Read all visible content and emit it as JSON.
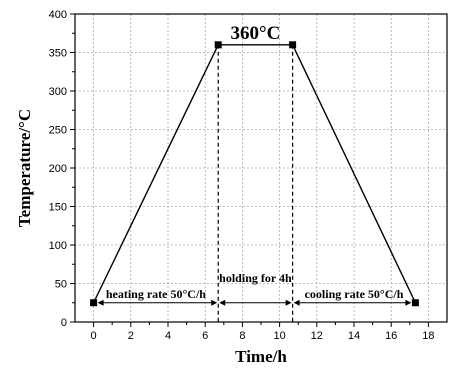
{
  "chart_data": {
    "type": "line",
    "xlabel": "Time/h",
    "ylabel": "Temperature/°C",
    "xlim": [
      -1,
      19
    ],
    "ylim": [
      0,
      400
    ],
    "x_ticks": [
      0,
      2,
      4,
      6,
      8,
      10,
      12,
      14,
      16,
      18
    ],
    "y_ticks": [
      0,
      50,
      100,
      150,
      200,
      250,
      300,
      350,
      400
    ],
    "grid": true,
    "series": [
      {
        "x": [
          0,
          6.7,
          10.7,
          17.3
        ],
        "y": [
          25,
          360,
          360,
          25
        ],
        "marker": "square",
        "color": "#000000"
      }
    ],
    "annotations": {
      "peak_label": "360°C",
      "heating": "heating rate 50°C/h",
      "holding": "holding for 4h",
      "cooling": "cooling rate 50°C/h"
    }
  }
}
